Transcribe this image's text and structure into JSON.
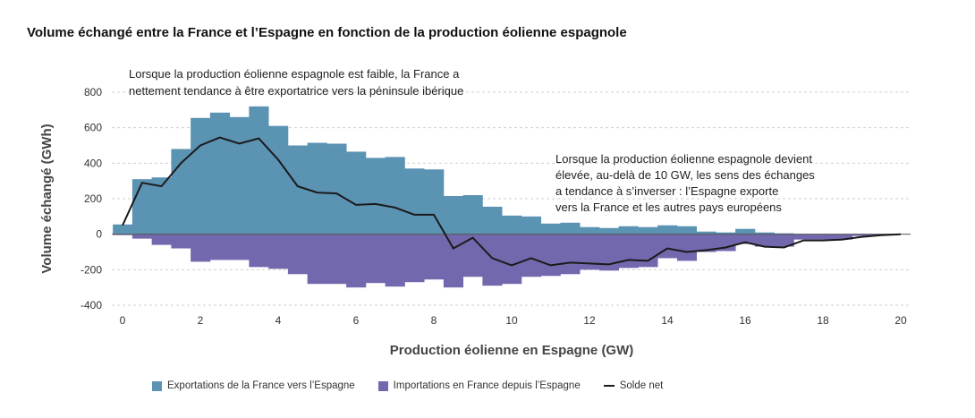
{
  "title": "Volume échangé entre la France et l’Espagne en fonction de la production éolienne espagnole",
  "colors": {
    "exports": "#5b93b3",
    "imports": "#7268ad",
    "net": "#1a1a1a",
    "grid": "#cfcfcf"
  },
  "annotations": {
    "top": [
      "Lorsque la production éolienne espagnole est faible, la France a",
      "nettement tendance à être exportatrice vers la péninsule ibérique"
    ],
    "right": [
      "Lorsque la production éolienne espagnole devient",
      "élevée, au-delà de 10 GW, les sens des échanges",
      "a tendance à s’inverser : l’Espagne exporte",
      "vers la France et les autres pays européens"
    ]
  },
  "chart_data": {
    "type": "bar",
    "xlabel": "Production éolienne en Espagne (GW)",
    "ylabel": "Volume échangé (GWh)",
    "xlim": [
      0,
      20
    ],
    "ylim": [
      -400,
      800
    ],
    "xticks": [
      "0",
      "2",
      "4",
      "6",
      "8",
      "10",
      "12",
      "14",
      "16",
      "18",
      "20"
    ],
    "yticks": [
      "800",
      "600",
      "400",
      "200",
      "0",
      "-200",
      "-400"
    ],
    "bin_width": 0.5,
    "bin_starts": [
      -0.25,
      0.25,
      0.75,
      1.25,
      1.75,
      2.25,
      2.75,
      3.25,
      3.75,
      4.25,
      4.75,
      5.25,
      5.75,
      6.25,
      6.75,
      7.25,
      7.75,
      8.25,
      8.75,
      9.25,
      9.75,
      10.25,
      10.75,
      11.25,
      11.75,
      12.25,
      12.75,
      13.25,
      13.75,
      14.25,
      14.75,
      15.25,
      15.75,
      16.25,
      16.75,
      17.25,
      17.75,
      18.25,
      18.75,
      19.25
    ],
    "series": [
      {
        "name": "Exportations de la France vers l’Espagne",
        "values": [
          55,
          310,
          320,
          480,
          655,
          685,
          660,
          720,
          610,
          500,
          515,
          510,
          465,
          430,
          435,
          370,
          365,
          215,
          220,
          155,
          105,
          100,
          60,
          65,
          40,
          35,
          45,
          40,
          50,
          45,
          15,
          10,
          30,
          10,
          5,
          0,
          0,
          0,
          0,
          0
        ]
      },
      {
        "name": "Importations en France depuis l’Espagne",
        "values": [
          -5,
          -25,
          -60,
          -80,
          -155,
          -145,
          -145,
          -185,
          -195,
          -225,
          -280,
          -280,
          -300,
          -275,
          -295,
          -270,
          -255,
          -300,
          -240,
          -290,
          -280,
          -240,
          -235,
          -225,
          -200,
          -205,
          -190,
          -185,
          -135,
          -150,
          -100,
          -95,
          -55,
          -70,
          -70,
          -30,
          -30,
          -30,
          -10,
          -5
        ]
      },
      {
        "name": "Solde net",
        "x": [
          0,
          0.5,
          1,
          1.5,
          2,
          2.5,
          3,
          3.5,
          4,
          4.5,
          5,
          5.5,
          6,
          6.5,
          7,
          7.5,
          8,
          8.5,
          9,
          9.5,
          10,
          10.5,
          11,
          11.5,
          12,
          12.5,
          13,
          13.5,
          14,
          14.5,
          15,
          15.5,
          16,
          16.5,
          17,
          17.5,
          18,
          18.5,
          19,
          19.5,
          20
        ],
        "values": [
          50,
          290,
          270,
          400,
          500,
          545,
          510,
          540,
          420,
          270,
          235,
          230,
          165,
          170,
          150,
          110,
          110,
          -80,
          -20,
          -135,
          -175,
          -135,
          -175,
          -160,
          -165,
          -170,
          -145,
          -150,
          -80,
          -100,
          -90,
          -75,
          -45,
          -70,
          -75,
          -35,
          -35,
          -30,
          -15,
          -5,
          0
        ]
      }
    ],
    "legend_position": "bottom",
    "grid": true
  }
}
